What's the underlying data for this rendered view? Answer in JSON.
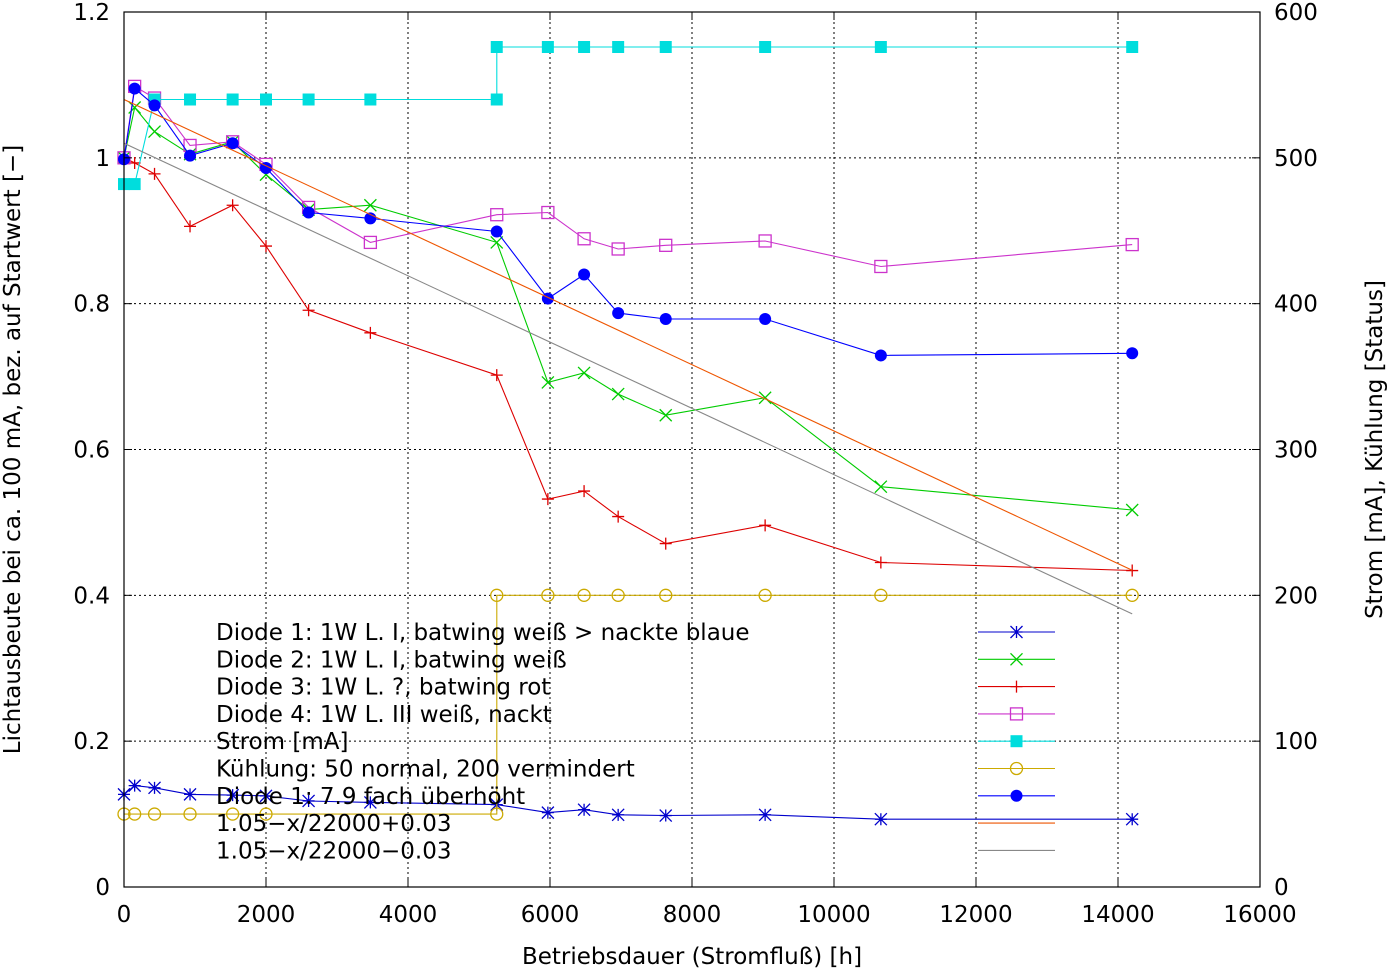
{
  "chart_data": {
    "type": "line",
    "xlabel": "Betriebsdauer (Stromfluß) [h]",
    "ylabel": "Lichtausbeute bei ca. 100 mA, bez. auf Startwert [−]",
    "y2label": "Strom [mA], Kühlung [Status]",
    "xlim": [
      0,
      16000
    ],
    "ylim": [
      0,
      1.2
    ],
    "y2lim": [
      0,
      600
    ],
    "x_ticks": [
      "0",
      "2000",
      "4000",
      "6000",
      "8000",
      "10000",
      "12000",
      "14000",
      "16000"
    ],
    "y_ticks": [
      "0",
      "0.2",
      "0.4",
      "0.6",
      "0.8",
      "1",
      "1.2"
    ],
    "y2_ticks": [
      "0",
      "100",
      "200",
      "300",
      "400",
      "500",
      "600"
    ],
    "grid": true,
    "legend_position": "bottom-left",
    "series": [
      {
        "name": "Diode 1: 1W L. I, batwing weiß > nackte blaue",
        "axis": "y1",
        "color": "#0000cc",
        "marker": "star",
        "step": false,
        "x": [
          0,
          150,
          430,
          930,
          1530,
          2000,
          2600,
          3470,
          5250,
          5970,
          6480,
          6960,
          7630,
          9030,
          10660,
          14200
        ],
        "y": [
          0.127,
          0.139,
          0.136,
          0.127,
          0.126,
          0.125,
          0.118,
          0.116,
          0.113,
          0.102,
          0.106,
          0.099,
          0.098,
          0.099,
          0.093,
          0.093
        ]
      },
      {
        "name": "Diode 2: 1W L. I, batwing weiß",
        "axis": "y1",
        "color": "#00cc00",
        "marker": "cross",
        "step": false,
        "x": [
          0,
          150,
          430,
          930,
          1530,
          2000,
          2600,
          3470,
          5250,
          5970,
          6480,
          6960,
          7630,
          9030,
          10660,
          14200
        ],
        "y": [
          1.0,
          1.069,
          1.036,
          1.005,
          1.022,
          0.977,
          0.929,
          0.935,
          0.884,
          0.692,
          0.705,
          0.676,
          0.647,
          0.671,
          0.549,
          0.517
        ]
      },
      {
        "name": "Diode 3: 1W L. ?, batwing rot",
        "axis": "y1",
        "color": "#dd0000",
        "marker": "plus",
        "step": false,
        "x": [
          0,
          150,
          430,
          930,
          1530,
          2000,
          2600,
          3470,
          5250,
          5970,
          6480,
          6960,
          7630,
          9030,
          10660,
          14200
        ],
        "y": [
          1.0,
          0.993,
          0.978,
          0.906,
          0.935,
          0.879,
          0.791,
          0.76,
          0.702,
          0.532,
          0.543,
          0.508,
          0.471,
          0.496,
          0.445,
          0.434
        ]
      },
      {
        "name": "Diode 4: 1W L. III weiß, nackt",
        "axis": "y1",
        "color": "#cc33cc",
        "marker": "square-open",
        "step": false,
        "x": [
          0,
          150,
          430,
          930,
          1530,
          2000,
          2600,
          3470,
          5250,
          5970,
          6480,
          6960,
          7630,
          9030,
          10660,
          14200
        ],
        "y": [
          1.0,
          1.098,
          1.082,
          1.017,
          1.022,
          0.991,
          0.932,
          0.884,
          0.922,
          0.925,
          0.889,
          0.875,
          0.88,
          0.886,
          0.851,
          0.881
        ]
      },
      {
        "name": "Strom [mA]",
        "axis": "y2",
        "color": "#00dddd",
        "marker": "square-filled",
        "step": true,
        "x": [
          0,
          150,
          430,
          930,
          1530,
          2000,
          2600,
          3470,
          5250,
          5250,
          5970,
          6480,
          6960,
          7630,
          9030,
          10660,
          14200
        ],
        "y": [
          482,
          482,
          540,
          540,
          540,
          540,
          540,
          540,
          540,
          576,
          576,
          576,
          576,
          576,
          576,
          576,
          576
        ]
      },
      {
        "name": "Kühlung: 50 normal, 200 vermindert",
        "axis": "y2",
        "color": "#ccaa00",
        "marker": "circle-open",
        "step": true,
        "x": [
          0,
          150,
          430,
          930,
          1530,
          2000,
          5250,
          5250,
          5970,
          6480,
          6960,
          7630,
          9030,
          10660,
          14200
        ],
        "y": [
          50,
          50,
          50,
          50,
          50,
          50,
          50,
          200,
          200,
          200,
          200,
          200,
          200,
          200,
          200
        ]
      },
      {
        "name": "Diode 1: 7.9 fach überhöht",
        "axis": "y1",
        "color": "#0000ff",
        "marker": "circle-filled",
        "step": false,
        "x": [
          0,
          150,
          430,
          930,
          1530,
          2000,
          2600,
          3470,
          5250,
          5970,
          6480,
          6960,
          7630,
          9030,
          10660,
          14200
        ],
        "y": [
          0.998,
          1.095,
          1.072,
          1.003,
          1.02,
          0.986,
          0.925,
          0.917,
          0.899,
          0.807,
          0.84,
          0.787,
          0.779,
          0.779,
          0.729,
          0.732
        ]
      },
      {
        "name": "1.05−x/22000+0.03",
        "axis": "y1",
        "color": "#ee5500",
        "marker": "none",
        "step": false,
        "x": [
          0,
          14200
        ],
        "y": [
          1.08,
          0.4345
        ]
      },
      {
        "name": "1.05−x/22000−0.03",
        "axis": "y1",
        "color": "#888888",
        "marker": "none",
        "step": false,
        "x": [
          0,
          14200
        ],
        "y": [
          1.02,
          0.3745
        ]
      }
    ]
  }
}
